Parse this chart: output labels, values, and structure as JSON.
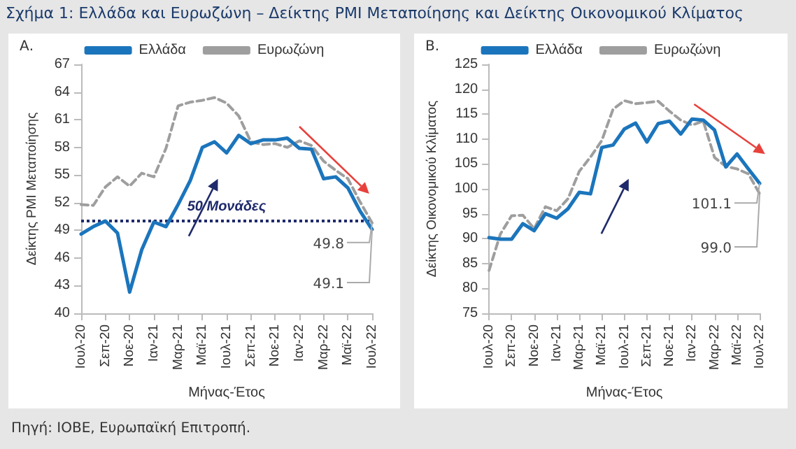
{
  "chart_data": [
    {
      "type": "line",
      "title": "Σχήμα 1: Ελλάδα και Ευρωζώνη – Δείκτης PMI Μεταποίησης και Δείκτης Οικονομικού Κλίματος",
      "subtitle": "Α.",
      "xlabel": "Μήνας-Έτος",
      "ylabel": "Δείκτης PMI Μεταποίησης",
      "categories": [
        "Ιουλ-20",
        null,
        "Σεπ-20",
        null,
        "Νοε-20",
        null,
        "Ιαν-21",
        null,
        "Μαρ-21",
        null,
        "Μαϊ-21",
        null,
        "Ιουλ-21",
        null,
        "Σεπ-21",
        null,
        "Νοε-21",
        null,
        "Ιαν-22",
        null,
        "Μαρ-22",
        null,
        "Μαϊ-22",
        null,
        "Ιουλ-22"
      ],
      "series": [
        {
          "name": "Ελλάδα",
          "color": "#1b75bc",
          "line_style": "solid",
          "values": [
            48.6,
            49.4,
            50.0,
            48.7,
            42.3,
            46.9,
            49.9,
            49.4,
            51.8,
            54.4,
            58.0,
            58.6,
            57.4,
            59.3,
            58.4,
            58.8,
            58.8,
            59.0,
            57.9,
            57.8,
            54.6,
            54.8,
            53.6,
            51.1,
            49.1
          ]
        },
        {
          "name": "Ευρωζώνη",
          "color": "#9e9e9e",
          "line_style": "dashed",
          "values": [
            51.8,
            51.7,
            53.7,
            54.8,
            53.8,
            55.2,
            54.8,
            57.9,
            62.5,
            62.9,
            63.1,
            63.4,
            62.8,
            61.4,
            58.6,
            58.3,
            58.4,
            58.0,
            58.7,
            58.2,
            56.5,
            55.5,
            54.6,
            52.1,
            49.8
          ]
        }
      ],
      "ylim": [
        40,
        67
      ],
      "yticks": [
        40,
        43,
        46,
        49,
        52,
        55,
        58,
        61,
        64,
        67
      ],
      "grid": false,
      "legend": "top",
      "marker": "none",
      "ref_lines": [
        {
          "axis": "y",
          "value": 50,
          "label": "50 Μονάδες",
          "color": "#1f2a6b",
          "line_style": "dotted"
        }
      ],
      "annotations": [
        {
          "text": "49.8",
          "x": "Ιουλ-22",
          "y": 49.8
        },
        {
          "text": "49.1",
          "x": "Ιουλ-22",
          "y": 49.1
        }
      ]
    },
    {
      "type": "line",
      "subtitle": "Β.",
      "xlabel": "Μήνας-Έτος",
      "ylabel": "Δείκτης Οικονομικού Κλίματος",
      "categories": [
        "Ιουλ-20",
        null,
        "Σεπ-20",
        null,
        "Νοε-20",
        null,
        "Ιαν-21",
        null,
        "Μαρ-21",
        null,
        "Μαϊ-21",
        null,
        "Ιουλ-21",
        null,
        "Σεπ-21",
        null,
        "Νοε-21",
        null,
        "Ιαν-22",
        null,
        "Μαρ-22",
        null,
        "Μαϊ-22",
        null,
        "Ιουλ-22"
      ],
      "series": [
        {
          "name": "Ελλάδα",
          "color": "#1b75bc",
          "line_style": "solid",
          "values": [
            90.2,
            89.9,
            89.9,
            93.0,
            91.6,
            95.0,
            94.1,
            96.0,
            99.3,
            99.0,
            108.3,
            108.8,
            112.0,
            113.2,
            109.4,
            113.1,
            113.6,
            111.0,
            114.0,
            113.8,
            111.8,
            104.4,
            107.0,
            104.0,
            101.1
          ]
        },
        {
          "name": "Ευρωζώνη",
          "color": "#9e9e9e",
          "line_style": "dashed",
          "values": [
            83.6,
            90.9,
            94.6,
            94.7,
            92.0,
            96.4,
            95.6,
            98.0,
            103.5,
            106.4,
            109.7,
            116.0,
            117.7,
            117.1,
            117.3,
            117.6,
            115.6,
            113.8,
            112.8,
            113.6,
            106.3,
            104.5,
            104.0,
            103.0,
            99.0
          ]
        }
      ],
      "ylim": [
        75,
        125
      ],
      "yticks": [
        75,
        80,
        85,
        90,
        95,
        100,
        105,
        110,
        115,
        120,
        125
      ],
      "grid": false,
      "legend": "top",
      "marker": "none",
      "annotations": [
        {
          "text": "101.1",
          "x": "Ιουλ-22",
          "y": 101.1
        },
        {
          "text": "99.0",
          "x": "Ιουλ-22",
          "y": 99.0
        },
        "Πηγή: ΙΟΒΕ, Ευρωπαϊκή Επιτροπή."
      ]
    }
  ]
}
